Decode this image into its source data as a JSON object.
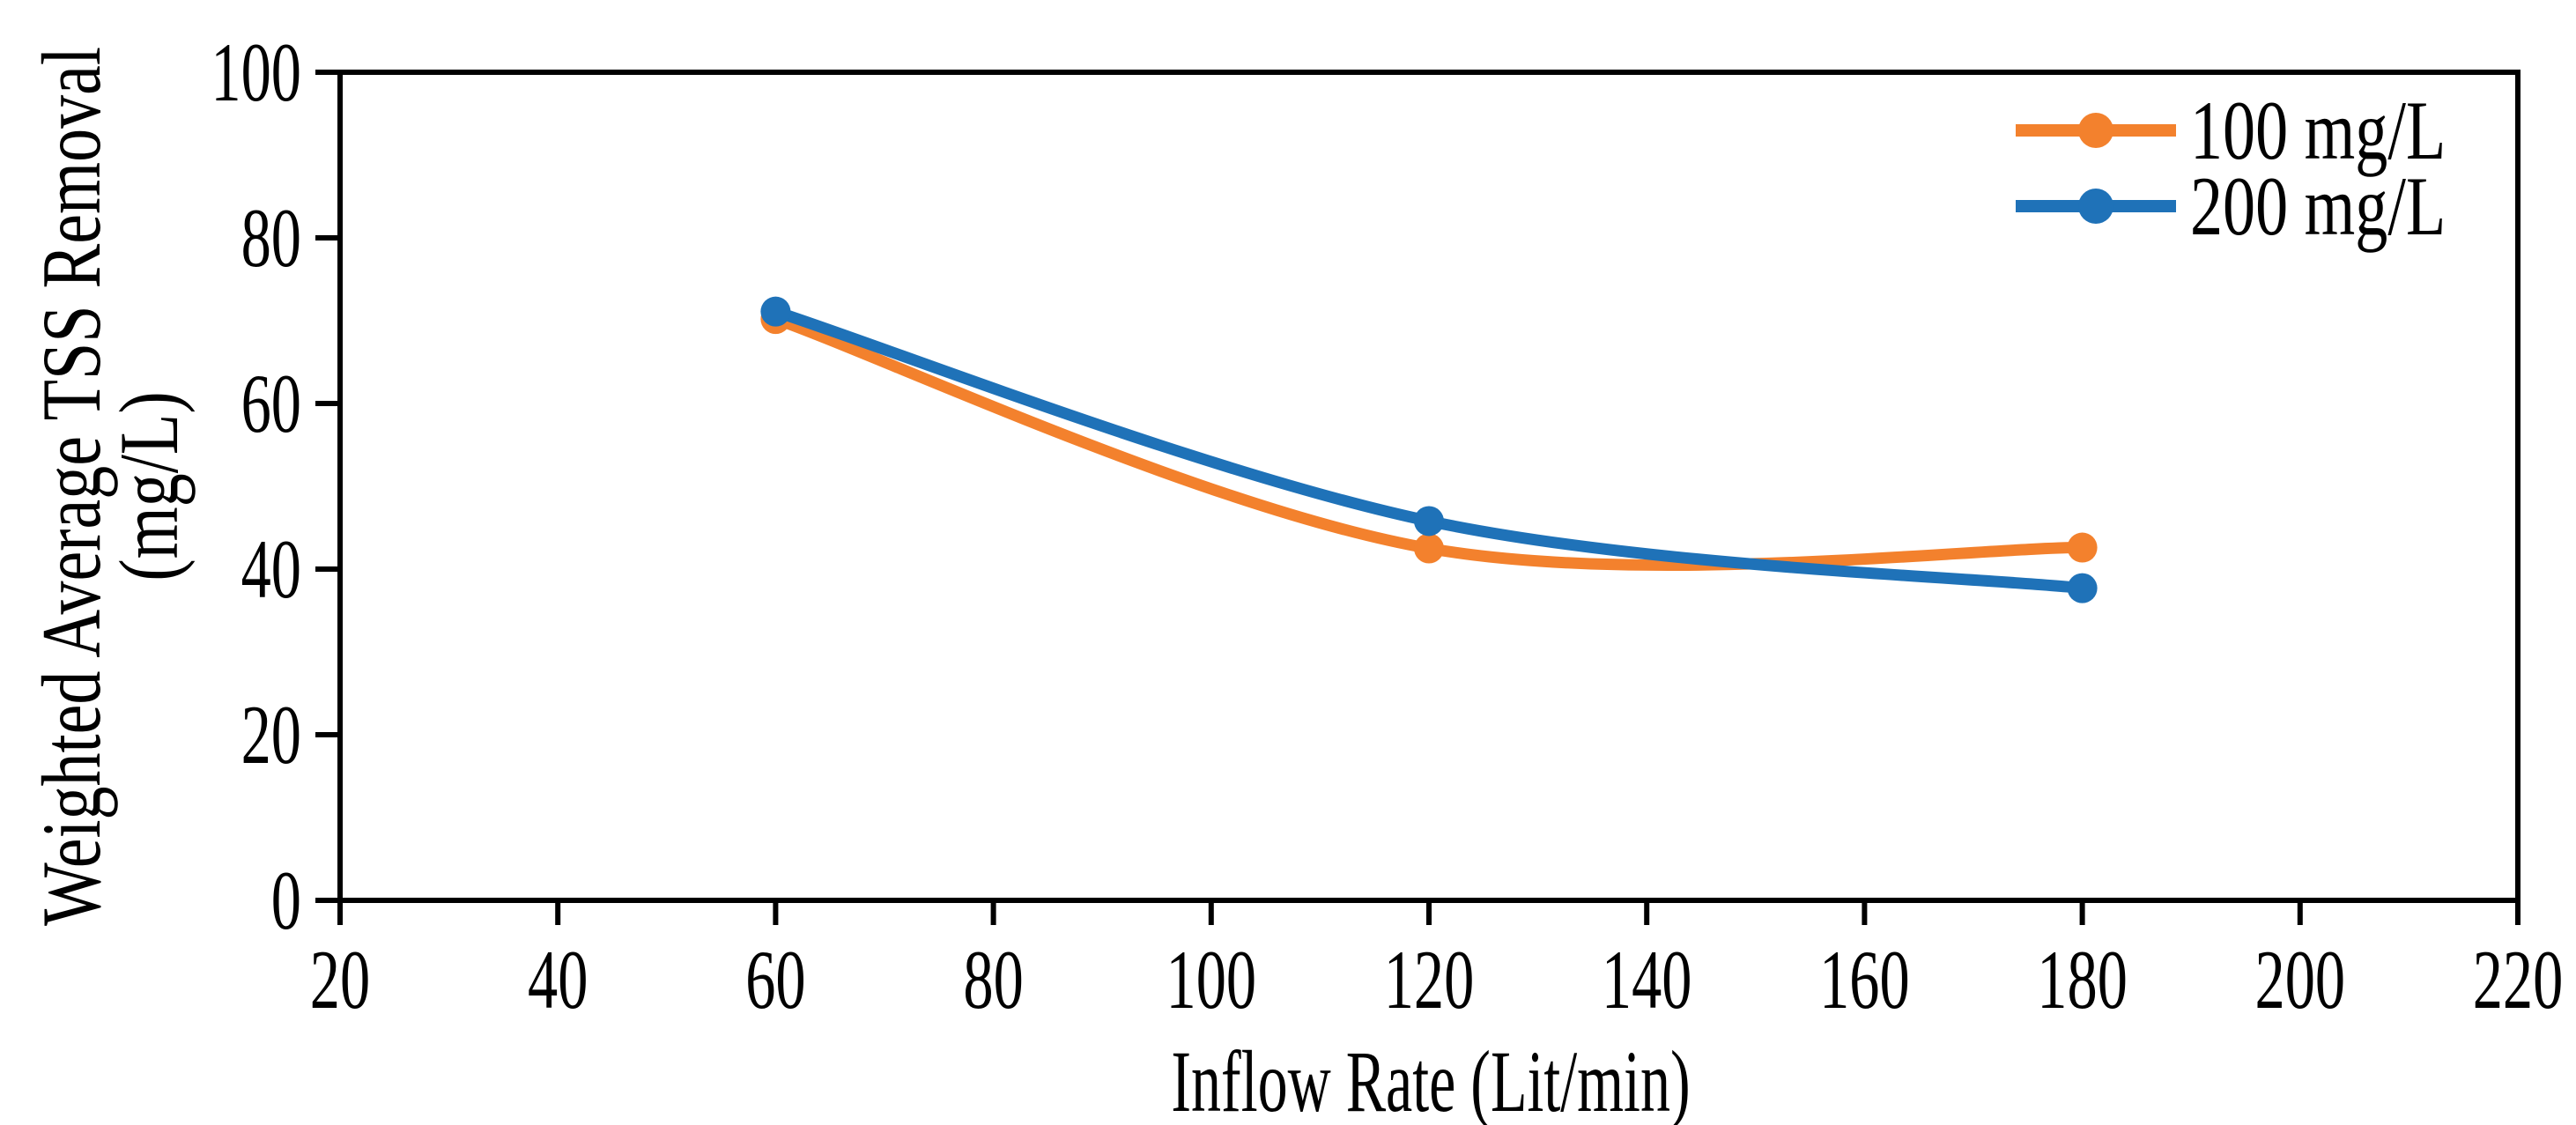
{
  "figure": {
    "background": "#FFFFFF",
    "axis_color": "#000000"
  },
  "chart_data": {
    "type": "line",
    "title": "",
    "x": [
      60,
      120,
      180
    ],
    "series": [
      {
        "name": "100 mg/L",
        "color": "#F3812D",
        "values": [
          70.2,
          42.5,
          42.6
        ]
      },
      {
        "name": "200 mg/L",
        "color": "#1F72B8",
        "values": [
          71.1,
          45.8,
          37.7
        ]
      }
    ],
    "xlabel": "Inflow Rate (Lit/min)",
    "ylabel": "Weighted Average TSS Removal (mg/L)",
    "ylabel_lines": [
      "Weighted Average TSS Removal",
      "(mg/L)"
    ],
    "xlim": [
      20,
      220
    ],
    "ylim": [
      0,
      100
    ],
    "x_ticks": [
      20,
      40,
      60,
      80,
      100,
      120,
      140,
      160,
      180,
      200,
      220
    ],
    "y_ticks": [
      0,
      20,
      40,
      60,
      80,
      100
    ],
    "grid": false,
    "line_style": "smooth",
    "marker": "circle",
    "legend_position": "top-right-inside"
  }
}
